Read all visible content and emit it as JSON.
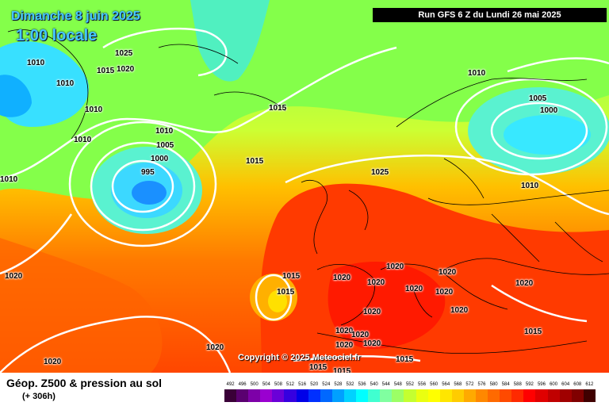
{
  "header": {
    "date": "Dimanche 8 juin 2025",
    "local_time": "1:00 locale",
    "run": "Run GFS 6 Z du Lundi 26 mai 2025"
  },
  "copyright": "Copyright © 2025 Meteociel.fr",
  "footer": {
    "title": "Géop. Z500 & pression au sol",
    "subtitle": "(+ 306h)"
  },
  "isobar_labels": [
    "1025",
    "1015",
    "1020",
    "1010",
    "1010",
    "1010",
    "1010",
    "1010",
    "1005",
    "1000",
    "995",
    "1010",
    "1015",
    "1015",
    "1025",
    "1010",
    "1005",
    "1000",
    "1010",
    "1020",
    "1015",
    "1015",
    "1020",
    "1020",
    "1020",
    "1020",
    "1020",
    "1020",
    "1020",
    "1020",
    "1020",
    "1020",
    "1020",
    "1020",
    "1020",
    "1015",
    "1015",
    "1015",
    "1015",
    "1020",
    "1020"
  ],
  "legend": {
    "values": [
      "492",
      "496",
      "500",
      "504",
      "508",
      "512",
      "516",
      "520",
      "524",
      "528",
      "532",
      "536",
      "540",
      "544",
      "548",
      "552",
      "556",
      "560",
      "564",
      "568",
      "572",
      "576",
      "580",
      "584",
      "588",
      "592",
      "596",
      "600",
      "604",
      "608",
      "612"
    ],
    "colors": [
      "#3a0038",
      "#5a0070",
      "#7d00a8",
      "#9a00d0",
      "#6a00d8",
      "#3600e0",
      "#0000e8",
      "#0030ff",
      "#0068ff",
      "#00a0ff",
      "#00d2ff",
      "#00ffff",
      "#40ffd0",
      "#80ffa0",
      "#9cff66",
      "#c4ff30",
      "#eaff10",
      "#ffff00",
      "#ffe600",
      "#ffcc00",
      "#ffaa00",
      "#ff8800",
      "#ff6a00",
      "#ff4a00",
      "#ff2a00",
      "#ff0000",
      "#e00000",
      "#c00000",
      "#a00000",
      "#800000",
      "#400000"
    ]
  },
  "icons": {
    "map": "weather-map"
  }
}
